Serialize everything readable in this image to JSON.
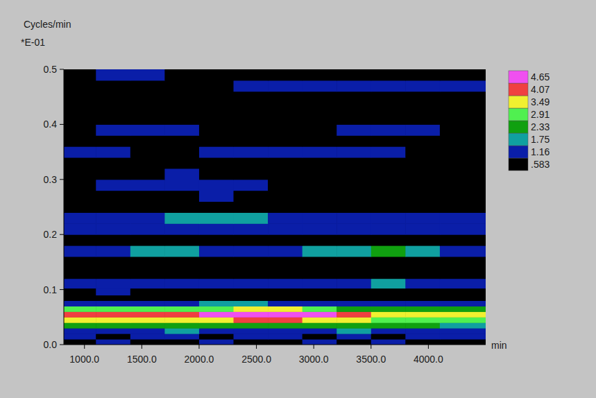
{
  "chart_data": {
    "type": "heatmap",
    "ylabel": "Cycles/min",
    "annotations": [
      "*E-01"
    ],
    "xlabel": "min",
    "xlim": [
      820,
      4500
    ],
    "ylim": [
      0,
      0.5
    ],
    "xticks": [
      {
        "value": 1000,
        "label": "1000.0"
      },
      {
        "value": 1500,
        "label": "1500.0"
      },
      {
        "value": 2000,
        "label": "2000.0"
      },
      {
        "value": 2500,
        "label": "2500.0"
      },
      {
        "value": 3000,
        "label": "3000.0"
      },
      {
        "value": 3500,
        "label": "3500.0"
      },
      {
        "value": 4000,
        "label": "4000.0"
      }
    ],
    "yticks": [
      {
        "value": 0,
        "label": "0.0"
      },
      0.1,
      0.2,
      0.3,
      0.4,
      0.5
    ],
    "x": [
      950,
      1250,
      1550,
      1850,
      2150,
      2450,
      2750,
      3050,
      3350,
      3650,
      3950,
      4250
    ],
    "y": [
      0.005,
      0.015,
      0.025,
      0.035,
      0.045,
      0.055,
      0.065,
      0.075,
      0.085,
      0.095,
      0.11,
      0.13,
      0.15,
      0.17,
      0.19,
      0.21,
      0.23,
      0.25,
      0.27,
      0.29,
      0.31,
      0.33,
      0.35,
      0.37,
      0.39,
      0.41,
      0.43,
      0.45,
      0.47,
      0.49
    ],
    "z": [
      [
        0.9,
        1.3,
        0.8,
        0.7,
        1.3,
        0.8,
        0.7,
        1.3,
        0.8,
        1.3,
        0.7,
        0.8
      ],
      [
        1.3,
        0.8,
        1.3,
        1.3,
        0.7,
        1.3,
        1.3,
        0.8,
        1.3,
        0.7,
        1.3,
        1.3
      ],
      [
        1.3,
        1.3,
        1.3,
        1.9,
        1.3,
        1.3,
        1.3,
        1.3,
        1.9,
        1.3,
        1.3,
        1.3
      ],
      [
        2.6,
        2.6,
        2.5,
        2.6,
        2.7,
        2.9,
        2.7,
        2.6,
        2.5,
        2.4,
        2.4,
        2.3
      ],
      [
        3.7,
        3.7,
        3.6,
        3.6,
        3.8,
        4.1,
        4.1,
        3.9,
        3.6,
        3.2,
        3.1,
        3.0
      ],
      [
        4.3,
        4.3,
        4.2,
        4.3,
        4.7,
        4.8,
        4.8,
        4.7,
        4.2,
        3.7,
        3.6,
        3.5
      ],
      [
        3.2,
        3.1,
        3.0,
        3.1,
        3.3,
        3.6,
        3.5,
        3.2,
        2.9,
        2.7,
        2.6,
        2.5
      ],
      [
        1.3,
        1.3,
        1.2,
        1.3,
        1.9,
        1.9,
        1.3,
        1.3,
        1.3,
        1.2,
        1.3,
        1.2
      ],
      [
        0.7,
        0.8,
        0.7,
        0.7,
        0.8,
        0.7,
        0.8,
        0.7,
        0.7,
        0.8,
        0.7,
        0.7
      ],
      [
        0.8,
        1.2,
        0.7,
        0.8,
        0.7,
        0.8,
        0.7,
        0.7,
        0.8,
        0.7,
        0.8,
        0.7
      ],
      [
        1.3,
        1.3,
        1.3,
        1.2,
        1.3,
        1.3,
        1.3,
        1.3,
        1.3,
        1.9,
        1.3,
        1.3
      ],
      [
        0.7,
        0.6,
        0.8,
        0.7,
        0.6,
        0.7,
        0.6,
        0.7,
        0.8,
        0.7,
        0.6,
        0.7
      ],
      [
        0.8,
        0.7,
        0.6,
        0.7,
        0.8,
        0.7,
        0.7,
        0.6,
        0.7,
        0.8,
        0.7,
        0.6
      ],
      [
        1.3,
        1.3,
        1.9,
        1.9,
        1.3,
        1.3,
        1.3,
        1.9,
        2.0,
        2.5,
        1.9,
        1.3
      ],
      [
        0.7,
        0.6,
        0.7,
        0.8,
        0.6,
        0.7,
        0.8,
        0.7,
        0.6,
        0.7,
        0.8,
        0.7
      ],
      [
        1.2,
        1.3,
        1.3,
        1.3,
        1.3,
        1.3,
        1.3,
        1.3,
        1.3,
        1.3,
        1.3,
        1.3
      ],
      [
        1.3,
        1.3,
        1.3,
        1.9,
        2.0,
        1.9,
        1.3,
        1.3,
        1.3,
        1.3,
        1.3,
        1.3
      ],
      [
        0.7,
        0.8,
        0.7,
        0.7,
        0.6,
        0.7,
        0.8,
        0.7,
        0.6,
        0.7,
        0.7,
        0.6
      ],
      [
        0.6,
        0.8,
        0.7,
        0.8,
        1.2,
        0.7,
        0.6,
        0.7,
        0.8,
        0.6,
        0.7,
        0.6
      ],
      [
        0.7,
        1.3,
        1.3,
        1.3,
        1.3,
        1.3,
        0.8,
        0.7,
        0.6,
        0.7,
        0.6,
        0.7
      ],
      [
        0.6,
        0.7,
        0.8,
        1.2,
        0.7,
        0.6,
        0.7,
        0.6,
        0.7,
        0.8,
        0.7,
        0.6
      ],
      [
        0.7,
        0.6,
        0.7,
        0.6,
        0.7,
        0.8,
        0.6,
        0.7,
        0.6,
        0.7,
        0.6,
        0.7
      ],
      [
        1.3,
        1.3,
        0.7,
        0.8,
        1.3,
        1.3,
        1.3,
        1.3,
        1.3,
        1.3,
        0.8,
        0.7
      ],
      [
        0.6,
        0.7,
        0.6,
        0.7,
        0.6,
        0.7,
        0.8,
        0.6,
        0.7,
        0.6,
        0.7,
        0.6
      ],
      [
        0.7,
        1.3,
        1.3,
        1.3,
        0.7,
        0.6,
        0.7,
        0.8,
        1.3,
        1.3,
        1.3,
        0.7
      ],
      [
        0.6,
        0.7,
        0.6,
        0.7,
        0.6,
        0.7,
        0.6,
        0.7,
        0.6,
        0.7,
        0.6,
        0.7
      ],
      [
        0.7,
        0.6,
        0.7,
        0.6,
        0.7,
        0.6,
        0.7,
        0.6,
        0.7,
        0.6,
        0.7,
        0.6
      ],
      [
        0.6,
        0.7,
        0.6,
        0.7,
        0.6,
        0.7,
        0.7,
        0.6,
        0.7,
        0.6,
        0.7,
        0.6
      ],
      [
        0.7,
        0.6,
        0.7,
        0.6,
        0.7,
        1.3,
        1.3,
        1.3,
        1.3,
        1.3,
        1.3,
        1.2
      ],
      [
        0.6,
        1.2,
        1.3,
        0.7,
        0.6,
        0.7,
        0.6,
        0.7,
        0.6,
        0.7,
        0.6,
        0.7
      ]
    ],
    "colorbar": {
      "ticks": [
        {
          "value": 0.583,
          "label": ".583"
        },
        1.16,
        1.75,
        2.33,
        2.91,
        3.49,
        4.07,
        4.65
      ],
      "colors": [
        "#000000",
        "#0a1ea8",
        "#10a0a0",
        "#10a010",
        "#50f050",
        "#f0f030",
        "#f04040",
        "#f050f0"
      ]
    }
  }
}
